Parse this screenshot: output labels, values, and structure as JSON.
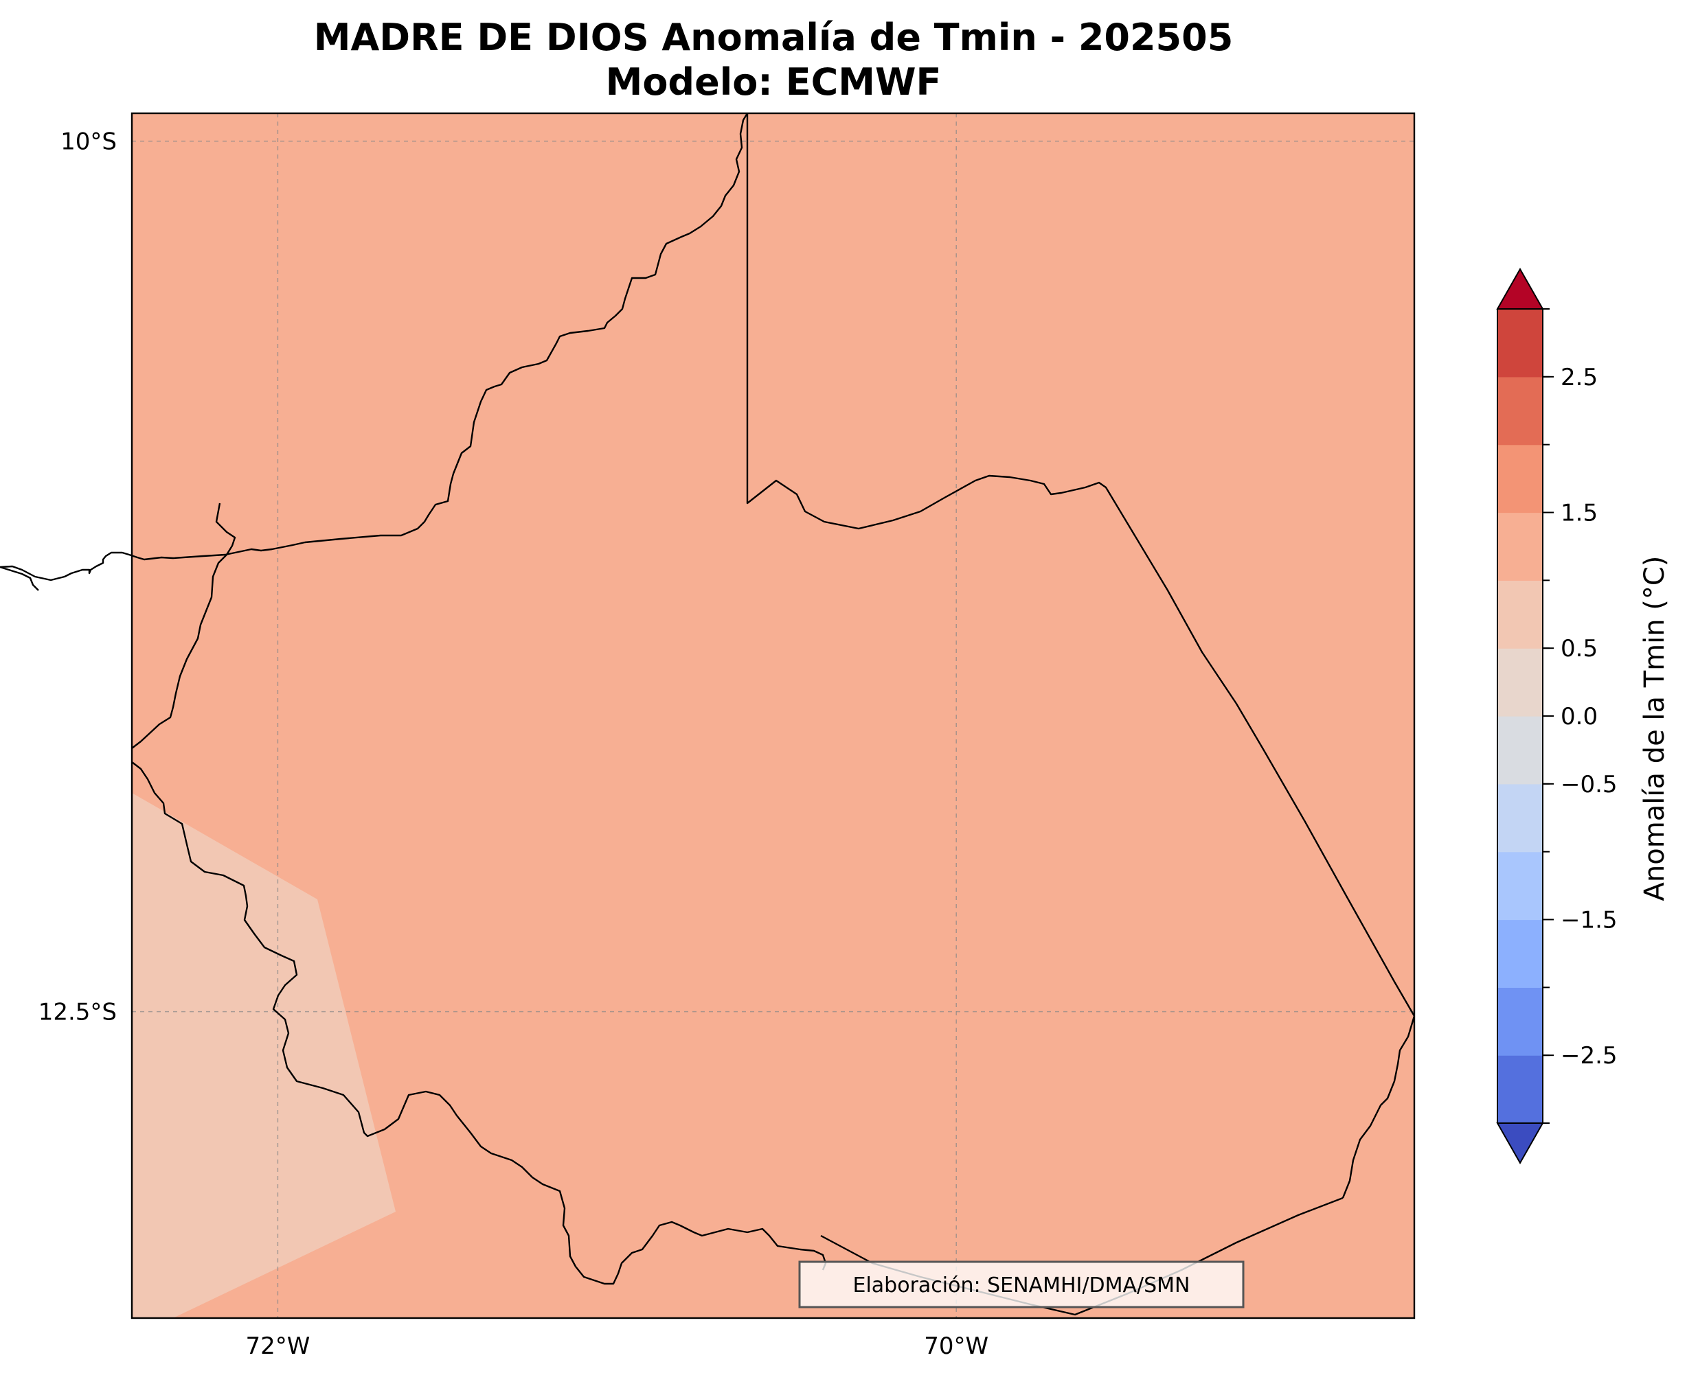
{
  "title": {
    "line1": "MADRE DE DIOS Anomalía de Tmin - 202505",
    "line2": "Modelo: ECMWF"
  },
  "map": {
    "lon_range": [
      -72.43,
      -68.65
    ],
    "lat_range": [
      -13.38,
      -9.92
    ],
    "x_ticks": [
      {
        "lon": -72,
        "label": "72°W"
      },
      {
        "lon": -70,
        "label": "70°W"
      }
    ],
    "y_ticks": [
      {
        "lat": -10,
        "label": "10°S"
      },
      {
        "lat": -12.5,
        "label": "12.5°S"
      }
    ],
    "gridlines": true,
    "field_colors": {
      "main": "#f7af93",
      "southwest": "#f2c7b3"
    },
    "credit": "Elaboración: SENAMHI/DMA/SMN"
  },
  "colorbar": {
    "label": "Anomalía de la Tmin (°C)",
    "levels": [
      -3,
      -2.5,
      -2,
      -1.5,
      -1,
      -0.5,
      0,
      0.5,
      1,
      1.5,
      2,
      2.5,
      3
    ],
    "colors": [
      "#3b4cc0",
      "#5470de",
      "#6f92f3",
      "#8cb0fe",
      "#a9c6fd",
      "#c3d5f4",
      "#d9dce1",
      "#e8d6cc",
      "#f2c7b3",
      "#f7af93",
      "#f39475",
      "#e36c55",
      "#cf453c",
      "#b40426"
    ],
    "tick_values": [
      -2.5,
      -1.5,
      -0.5,
      0.0,
      0.5,
      1.5,
      2.5
    ],
    "tick_labels": [
      "−2.5",
      "−1.5",
      "−0.5",
      "0.0",
      "0.5",
      "1.5",
      "2.5"
    ],
    "extend": "both"
  }
}
